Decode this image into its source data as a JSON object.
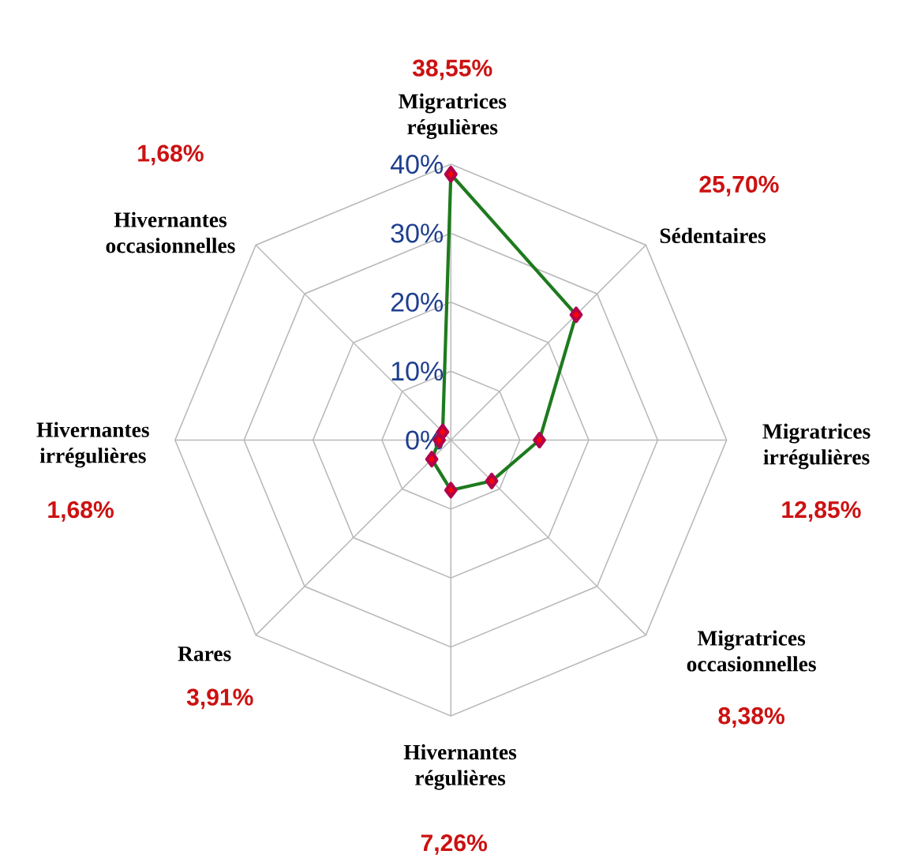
{
  "chart_data": {
    "type": "radar",
    "categories": [
      "Migratrices régulières",
      "Sédentaires",
      "Migratrices irrégulières",
      "Migratrices occasionnelles",
      "Hivernantes régulières",
      "Rares",
      "Hivernantes irrégulières",
      "Hivernantes occasionnelles"
    ],
    "series": [
      {
        "color": "#1e7a1e",
        "values": [
          38.55,
          25.7,
          12.85,
          8.38,
          7.26,
          3.91,
          1.68,
          1.68
        ]
      }
    ],
    "annotations": [
      "38,55%",
      "25,70%",
      "12,85%",
      "8,38%",
      "7,26%",
      "3,91%",
      "1,68%",
      "1,68%"
    ],
    "ylim": [
      0,
      40
    ],
    "yticks": [
      {
        "value": 0,
        "label": "0%"
      },
      {
        "value": 10,
        "label": "10%"
      },
      {
        "value": 20,
        "label": "20%"
      },
      {
        "value": 30,
        "label": "30%"
      },
      {
        "value": 40,
        "label": "40%"
      }
    ],
    "grid": true,
    "marker": "diamond",
    "line_style": "solid"
  }
}
